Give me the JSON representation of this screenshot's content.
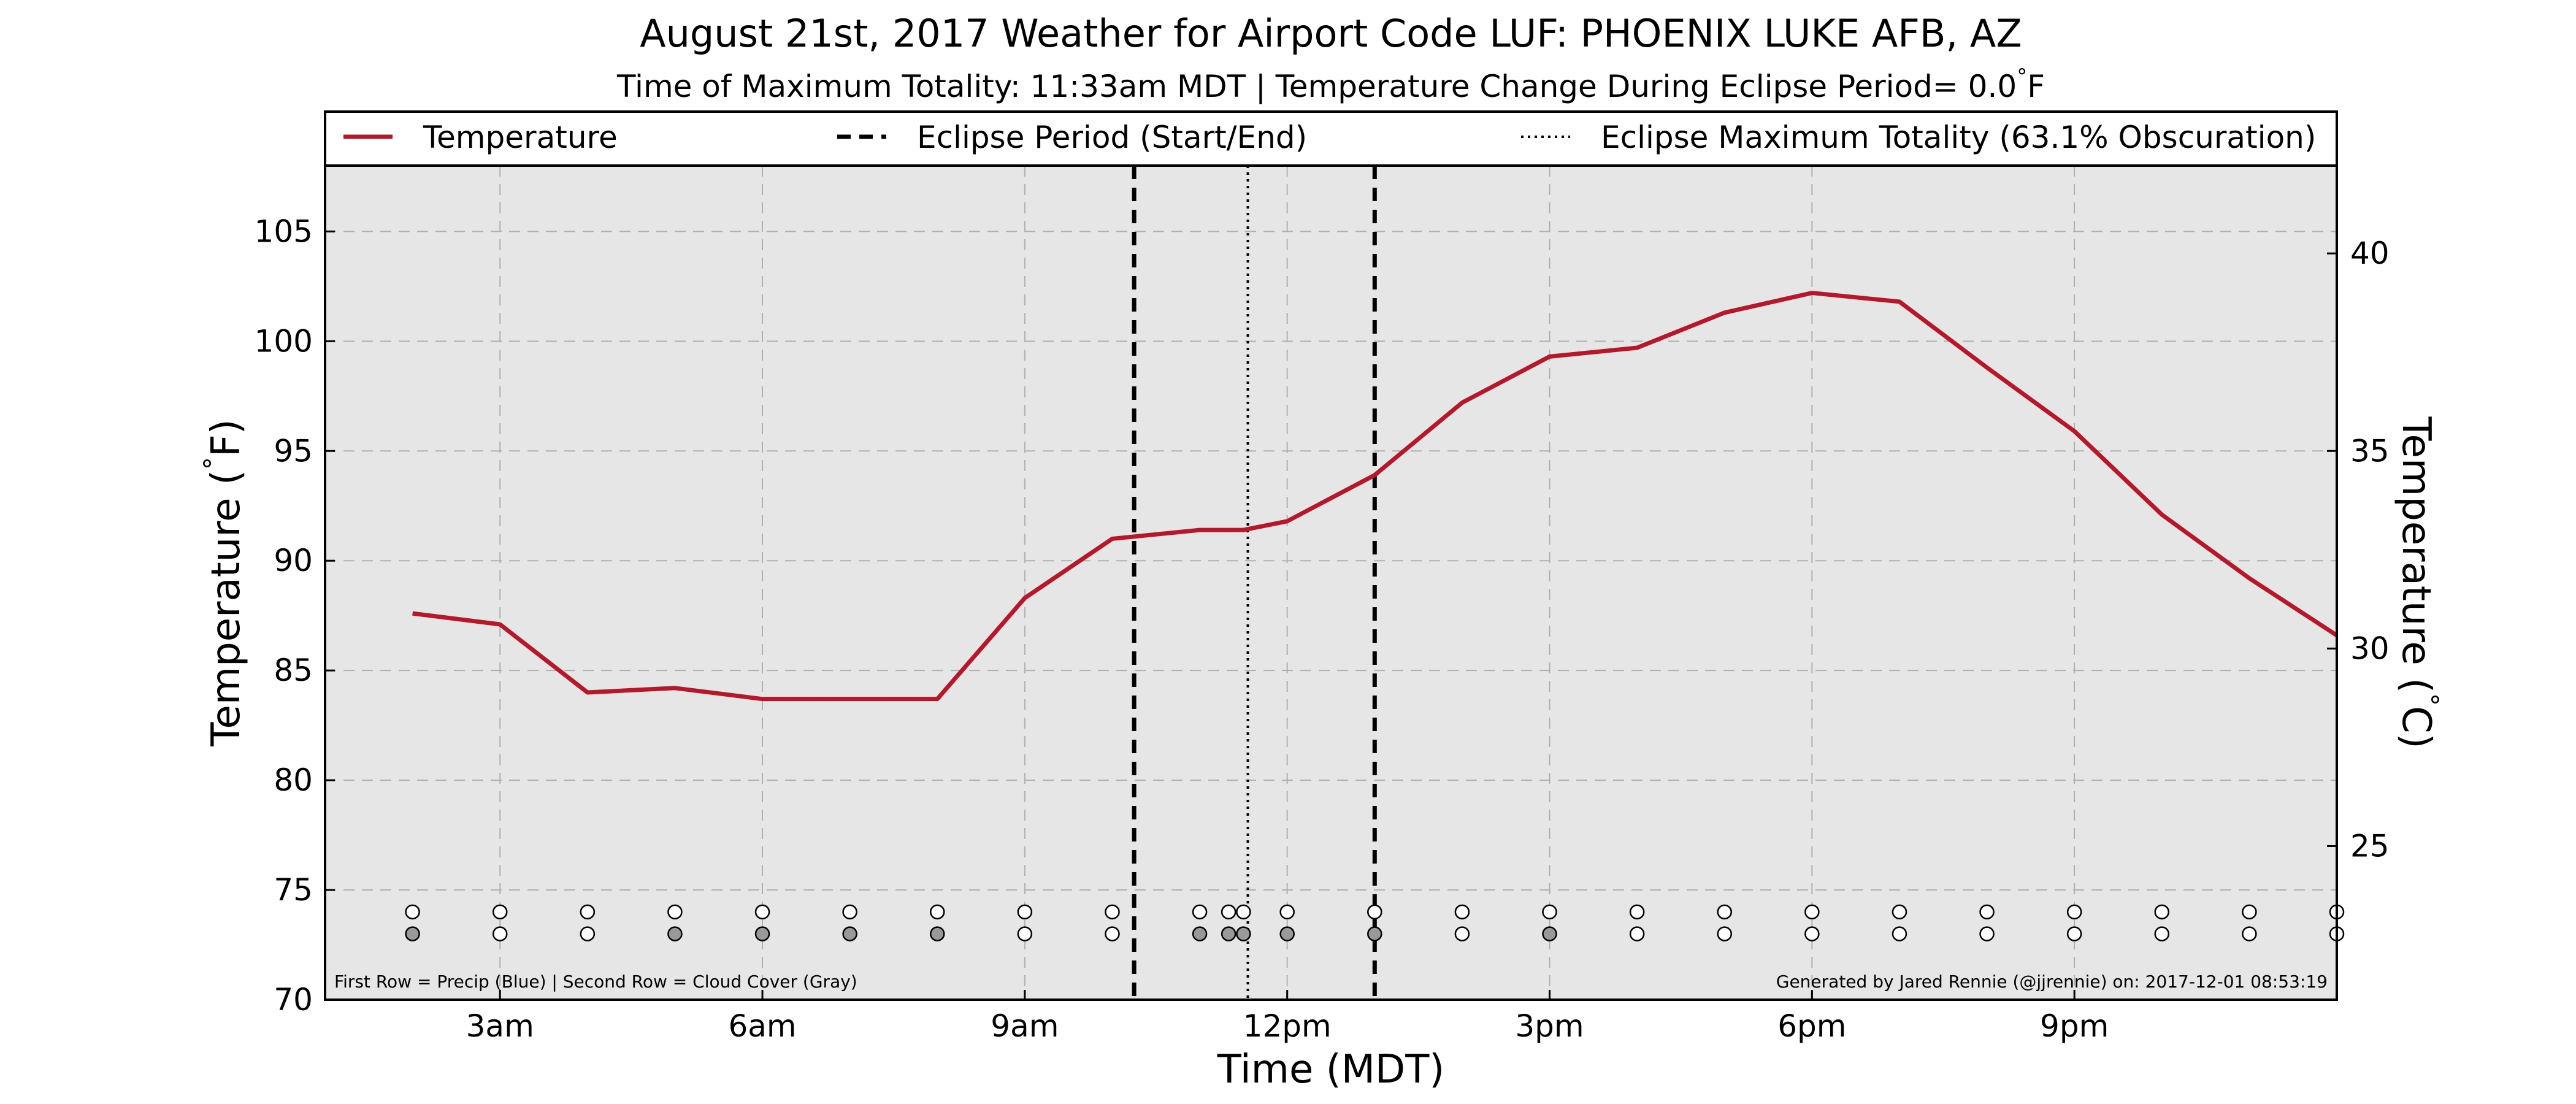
{
  "chart_data": {
    "type": "line",
    "title": "August 21st, 2017 Weather for Airport Code LUF: PHOENIX LUKE AFB, AZ",
    "subtitle": "Time of Maximum Totality: 11:33am MDT | Temperature Change During Eclipse Period= 0.0",
    "subtitle_unit": "F",
    "xlabel": "Time (MDT)",
    "ylabel": "Temperature ( F)",
    "ylabel_right": "Temperature ( C)",
    "xlim": [
      1.0,
      24.0
    ],
    "ylim": [
      70,
      108
    ],
    "ylim_right_celsius": [
      21.11,
      42.22
    ],
    "xticks": [
      {
        "value": 3,
        "label": "3am"
      },
      {
        "value": 6,
        "label": "6am"
      },
      {
        "value": 9,
        "label": "9am"
      },
      {
        "value": 12,
        "label": "12pm"
      },
      {
        "value": 15,
        "label": "3pm"
      },
      {
        "value": 18,
        "label": "6pm"
      },
      {
        "value": 21,
        "label": "9pm"
      }
    ],
    "yticks": [
      70,
      75,
      80,
      85,
      90,
      95,
      100,
      105
    ],
    "yticks_right": [
      25,
      30,
      35,
      40
    ],
    "grid": true,
    "legend_placement": "top",
    "legend": [
      {
        "label": "Temperature",
        "style": "solid",
        "color": "#b5172b"
      },
      {
        "label": "Eclipse Period (Start/End)",
        "style": "dashed",
        "color": "#000000"
      },
      {
        "label": "Eclipse Maximum Totality (63.1% Obscuration)",
        "style": "dotted",
        "color": "#000000"
      }
    ],
    "series": [
      {
        "name": "Temperature",
        "color": "#b5172b",
        "x": [
          2,
          3,
          4,
          5,
          6,
          7,
          8,
          9,
          10,
          11,
          11.33,
          11.5,
          12,
          13,
          14,
          15,
          16,
          17,
          18,
          19,
          20,
          21,
          22,
          23,
          24
        ],
        "y": [
          87.6,
          87.1,
          84.0,
          84.2,
          83.7,
          83.7,
          83.7,
          88.3,
          91.0,
          91.4,
          91.4,
          91.4,
          91.8,
          93.9,
          97.2,
          99.3,
          99.7,
          101.3,
          102.2,
          101.8,
          98.8,
          95.9,
          92.1,
          89.2,
          86.6
        ]
      }
    ],
    "eclipse_period": [
      10.25,
      13.0
    ],
    "eclipse_max": 11.55,
    "indicator_rows": {
      "x": [
        2,
        3,
        4,
        5,
        6,
        7,
        8,
        9,
        10,
        11,
        11.33,
        11.5,
        12,
        13,
        14,
        15,
        16,
        17,
        18,
        19,
        20,
        21,
        22,
        23,
        24
      ],
      "precip_y": 74.0,
      "cloud_y": 73.0,
      "precip_colors": [
        "#ffffff",
        "#ffffff",
        "#ffffff",
        "#ffffff",
        "#ffffff",
        "#ffffff",
        "#ffffff",
        "#ffffff",
        "#ffffff",
        "#ffffff",
        "#ffffff",
        "#ffffff",
        "#ffffff",
        "#ffffff",
        "#ffffff",
        "#ffffff",
        "#ffffff",
        "#ffffff",
        "#ffffff",
        "#ffffff",
        "#ffffff",
        "#ffffff",
        "#ffffff",
        "#ffffff",
        "#ffffff"
      ],
      "cloud_colors": [
        "#999999",
        "#ffffff",
        "#ffffff",
        "#999999",
        "#999999",
        "#999999",
        "#999999",
        "#ffffff",
        "#ffffff",
        "#999999",
        "#999999",
        "#999999",
        "#999999",
        "#999999",
        "#ffffff",
        "#999999",
        "#ffffff",
        "#ffffff",
        "#ffffff",
        "#ffffff",
        "#ffffff",
        "#ffffff",
        "#ffffff",
        "#ffffff",
        "#ffffff"
      ]
    },
    "footnote_left": "First Row = Precip (Blue) | Second Row = Cloud Cover (Gray)",
    "footnote_right": "Generated by Jared Rennie (@jjrennie) on: 2017-12-01 08:53:19",
    "colors": {
      "plot_bg": "#e6e6e6",
      "grid": "#b0b0b0",
      "line": "#b5172b"
    }
  }
}
